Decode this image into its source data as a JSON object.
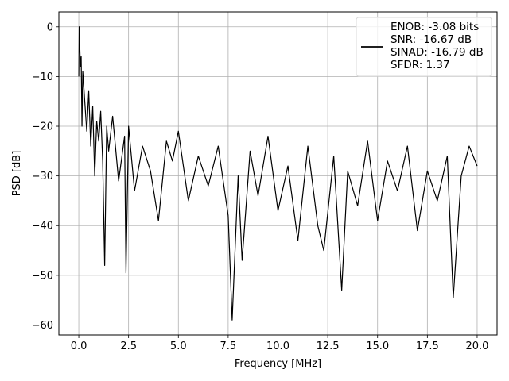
{
  "chart_data": {
    "type": "line",
    "title": "",
    "xlabel": "Frequency [MHz]",
    "ylabel": "PSD [dB]",
    "xlim": [
      -1.0,
      21.0
    ],
    "ylim": [
      -62.0,
      3.0
    ],
    "xticks": [
      0.0,
      2.5,
      5.0,
      7.5,
      10.0,
      12.5,
      15.0,
      17.5,
      20.0
    ],
    "xtick_labels": [
      "0.0",
      "2.5",
      "5.0",
      "7.5",
      "10.0",
      "12.5",
      "15.0",
      "17.5",
      "20.0"
    ],
    "yticks": [
      0,
      -10,
      -20,
      -30,
      -40,
      -50,
      -60
    ],
    "ytick_labels": [
      "0",
      "−10",
      "−20",
      "−30",
      "−40",
      "−50",
      "−60"
    ],
    "grid": true,
    "legend_position": "upper-right",
    "legend_lines": [
      "ENOB: -3.08 bits",
      "SNR: -16.67 dB",
      "SINAD: -16.79 dB",
      "SFDR: 1.37"
    ],
    "series": [
      {
        "color": "#000000",
        "style": "noise-like PSD trace: sharp peak near 0 dB at DC, then dense random fluctuation roughly between -15 and -35 dB, with isolated deep dips",
        "x": [
          0.0,
          0.02,
          0.05,
          0.08,
          0.12,
          0.16,
          0.2,
          0.25,
          0.3,
          0.4,
          0.5,
          0.6,
          0.7,
          0.8,
          0.9,
          1.0,
          1.1,
          1.2,
          1.3,
          1.4,
          1.5,
          1.7,
          2.0,
          2.3,
          2.37,
          2.5,
          2.8,
          3.2,
          3.6,
          4.0,
          4.4,
          4.7,
          5.0,
          5.5,
          6.0,
          6.5,
          7.0,
          7.5,
          7.7,
          8.0,
          8.2,
          8.6,
          9.0,
          9.5,
          10.0,
          10.5,
          11.0,
          11.5,
          12.0,
          12.3,
          12.8,
          13.2,
          13.5,
          14.0,
          14.5,
          15.0,
          15.5,
          16.0,
          16.5,
          17.0,
          17.5,
          18.0,
          18.5,
          18.8,
          19.2,
          19.6,
          20.0
        ],
        "y": [
          -10,
          0,
          -4,
          -8,
          -6,
          -20,
          -9,
          -12,
          -15,
          -21,
          -13,
          -24,
          -16,
          -30,
          -19,
          -23,
          -17,
          -27,
          -48,
          -20,
          -25,
          -18,
          -31,
          -22,
          -49.5,
          -20,
          -33,
          -24,
          -29,
          -39,
          -23,
          -27,
          -21,
          -35,
          -26,
          -32,
          -24,
          -38,
          -59,
          -30,
          -47,
          -25,
          -34,
          -22,
          -37,
          -28,
          -43,
          -24,
          -40,
          -45,
          -26,
          -53,
          -29,
          -36,
          -23,
          -39,
          -27,
          -33,
          -24,
          -41,
          -29,
          -35,
          -26,
          -54.5,
          -30,
          -24,
          -28
        ]
      }
    ]
  }
}
